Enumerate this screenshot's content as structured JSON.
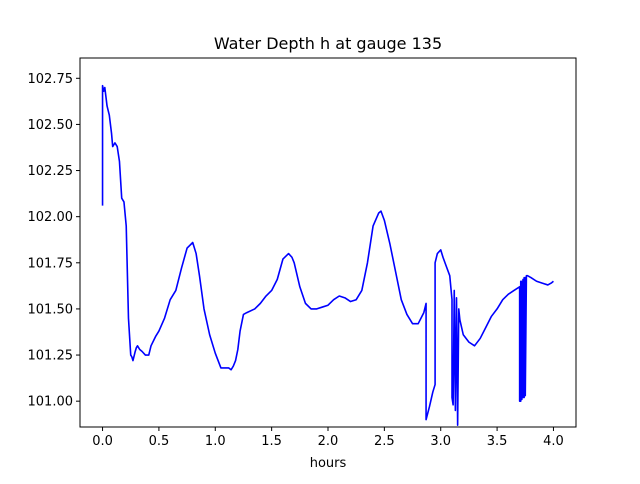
{
  "chart_data": {
    "type": "line",
    "title": "Water Depth h at gauge 135",
    "xlabel": "hours",
    "ylabel": "",
    "xlim": [
      -0.2,
      4.2
    ],
    "ylim": [
      100.86,
      102.86
    ],
    "xticks": [
      "0.0",
      "0.5",
      "1.0",
      "1.5",
      "2.0",
      "2.5",
      "3.0",
      "3.5",
      "4.0"
    ],
    "yticks": [
      "101.00",
      "101.25",
      "101.50",
      "101.75",
      "102.00",
      "102.25",
      "102.50",
      "102.75"
    ],
    "grid": false,
    "legend": "none",
    "series": [
      {
        "color": "#0000ff",
        "x": [
          0.0,
          0.0,
          0.01,
          0.02,
          0.03,
          0.04,
          0.06,
          0.08,
          0.09,
          0.11,
          0.13,
          0.15,
          0.17,
          0.19,
          0.21,
          0.23,
          0.25,
          0.26,
          0.27,
          0.29,
          0.3,
          0.31,
          0.32,
          0.33,
          0.35,
          0.38,
          0.41,
          0.43,
          0.47,
          0.5,
          0.55,
          0.6,
          0.65,
          0.7,
          0.75,
          0.8,
          0.83,
          0.86,
          0.9,
          0.95,
          1.0,
          1.05,
          1.08,
          1.12,
          1.14,
          1.16,
          1.18,
          1.2,
          1.22,
          1.25,
          1.28,
          1.35,
          1.4,
          1.45,
          1.5,
          1.55,
          1.6,
          1.65,
          1.68,
          1.7,
          1.75,
          1.8,
          1.85,
          1.9,
          1.95,
          2.0,
          2.05,
          2.1,
          2.15,
          2.2,
          2.25,
          2.3,
          2.35,
          2.4,
          2.45,
          2.47,
          2.5,
          2.55,
          2.6,
          2.65,
          2.7,
          2.75,
          2.8,
          2.85,
          2.87,
          2.87,
          2.9,
          2.93,
          2.95,
          2.95,
          2.97,
          3.0,
          3.02,
          3.05,
          3.08,
          3.1,
          3.1,
          3.11,
          3.12,
          3.13,
          3.14,
          3.15,
          3.16,
          3.17,
          3.2,
          3.25,
          3.3,
          3.35,
          3.4,
          3.45,
          3.5,
          3.55,
          3.6,
          3.65,
          3.7,
          3.7,
          3.71,
          3.71,
          3.72,
          3.72,
          3.73,
          3.73,
          3.74,
          3.74,
          3.75,
          3.75,
          3.76,
          3.77,
          3.8,
          3.85,
          3.9,
          3.95,
          3.98,
          4.0
        ],
        "y": [
          102.06,
          102.71,
          102.68,
          102.7,
          102.65,
          102.6,
          102.55,
          102.45,
          102.38,
          102.4,
          102.38,
          102.3,
          102.1,
          102.08,
          101.95,
          101.45,
          101.25,
          101.24,
          101.22,
          101.27,
          101.29,
          101.3,
          101.29,
          101.28,
          101.27,
          101.25,
          101.25,
          101.3,
          101.35,
          101.38,
          101.45,
          101.55,
          101.6,
          101.72,
          101.83,
          101.86,
          101.8,
          101.68,
          101.5,
          101.36,
          101.26,
          101.18,
          101.18,
          101.18,
          101.17,
          101.19,
          101.22,
          101.28,
          101.38,
          101.47,
          101.48,
          101.5,
          101.53,
          101.57,
          101.6,
          101.66,
          101.77,
          101.8,
          101.78,
          101.75,
          101.62,
          101.53,
          101.5,
          101.5,
          101.51,
          101.52,
          101.55,
          101.57,
          101.56,
          101.54,
          101.55,
          101.6,
          101.75,
          101.95,
          102.02,
          102.03,
          101.98,
          101.85,
          101.7,
          101.55,
          101.47,
          101.42,
          101.42,
          101.48,
          101.53,
          100.9,
          100.97,
          101.05,
          101.09,
          101.75,
          101.8,
          101.82,
          101.78,
          101.73,
          101.68,
          101.55,
          101.02,
          100.98,
          101.6,
          100.95,
          101.56,
          100.87,
          101.5,
          101.44,
          101.36,
          101.32,
          101.3,
          101.34,
          101.4,
          101.46,
          101.5,
          101.55,
          101.58,
          101.6,
          101.62,
          101.0,
          101.65,
          101.0,
          101.65,
          101.01,
          101.66,
          101.02,
          101.67,
          101.02,
          101.67,
          101.03,
          101.68,
          101.68,
          101.67,
          101.65,
          101.64,
          101.63,
          101.64,
          101.65
        ]
      }
    ]
  }
}
